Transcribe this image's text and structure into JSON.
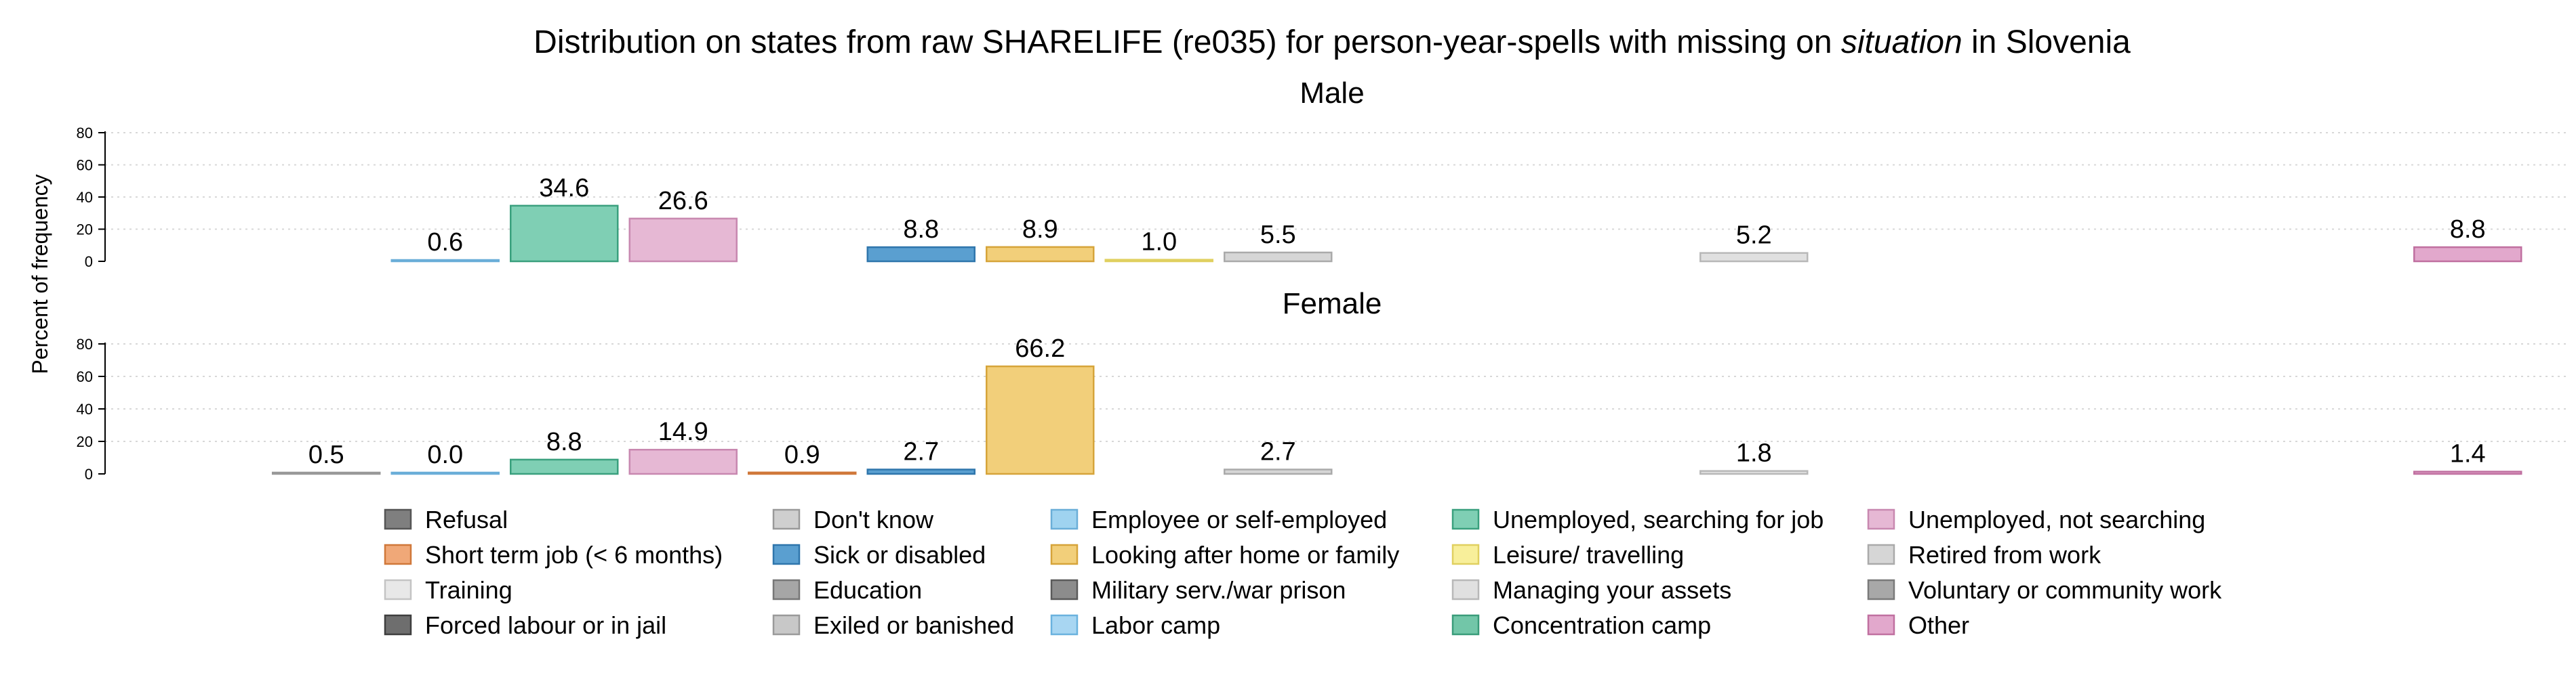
{
  "chart_data": {
    "type": "bar",
    "title_pre": "Distribution on states from raw SHARELIFE (re035) for person-year-spells with missing on ",
    "title_italic": "situation",
    "title_post": " in Slovenia",
    "ylabel": "Percent of frequency",
    "ylim": [
      0,
      80
    ],
    "yticks": [
      0,
      20,
      40,
      60,
      80
    ],
    "grid": true,
    "legend_position": "bottom",
    "categories": [
      "Refusal",
      "Don't know",
      "Employee or self-employed",
      "Unemployed, searching for job",
      "Unemployed, not searching",
      "Short term job (< 6 months)",
      "Sick or disabled",
      "Looking after home or family",
      "Leisure/ travelling",
      "Retired from work",
      "Training",
      "Education",
      "Military serv./war prison",
      "Managing your assets",
      "Voluntary or community work",
      "Forced labour or in jail",
      "Exiled or banished",
      "Labor camp",
      "Concentration camp",
      "Other"
    ],
    "colors": {
      "Refusal": "#7f7f7f",
      "Don't know": "#cfcfcf",
      "Employee or self-employed": "#9fd3f0",
      "Unemployed, searching for job": "#7fcfb4",
      "Unemployed, not searching": "#e6b8d4",
      "Short term job (< 6 months)": "#f0a878",
      "Sick or disabled": "#5a9fd0",
      "Looking after home or family": "#f2cf7a",
      "Leisure/ travelling": "#f8ef9a",
      "Retired from work": "#d6d6d6",
      "Training": "#e8e8e8",
      "Education": "#a6a6a6",
      "Military serv./war prison": "#8c8c8c",
      "Managing your assets": "#e0e0e0",
      "Voluntary or community work": "#a8a8a8",
      "Forced labour or in jail": "#6e6e6e",
      "Exiled or banished": "#c8c8c8",
      "Labor camp": "#a8d6f2",
      "Concentration camp": "#72c6a8",
      "Other": "#e2a8cc"
    },
    "border_colors": {
      "Refusal": "#555555",
      "Don't know": "#999999",
      "Employee or self-employed": "#6aaed8",
      "Unemployed, searching for job": "#3aa07e",
      "Unemployed, not searching": "#c888b0",
      "Short term job (< 6 months)": "#d0783a",
      "Sick or disabled": "#2f76ac",
      "Looking after home or family": "#d6a43a",
      "Leisure/ travelling": "#e0d060",
      "Retired from work": "#aaaaaa",
      "Training": "#c4c4c4",
      "Education": "#777777",
      "Military serv./war prison": "#5a5a5a",
      "Managing your assets": "#b8b8b8",
      "Voluntary or community work": "#7a7a7a",
      "Forced labour or in jail": "#3e3e3e",
      "Exiled or banished": "#9a9a9a",
      "Labor camp": "#6ab2de",
      "Concentration camp": "#3a9c7a",
      "Other": "#c070a0"
    },
    "panels": [
      {
        "title": "Male",
        "bars": [
          {
            "category": "Employee or self-employed",
            "value": 0.6,
            "label": "0.6"
          },
          {
            "category": "Unemployed, searching for job",
            "value": 34.6,
            "label": "34.6"
          },
          {
            "category": "Unemployed, not searching",
            "value": 26.6,
            "label": "26.6"
          },
          {
            "category": "Sick or disabled",
            "value": 8.8,
            "label": "8.8"
          },
          {
            "category": "Looking after home or family",
            "value": 8.9,
            "label": "8.9"
          },
          {
            "category": "Leisure/ travelling",
            "value": 1.0,
            "label": "1.0"
          },
          {
            "category": "Retired from work",
            "value": 5.5,
            "label": "5.5"
          },
          {
            "category": "Managing your assets",
            "value": 5.2,
            "label": "5.2"
          },
          {
            "category": "Other",
            "value": 8.8,
            "label": "8.8"
          }
        ]
      },
      {
        "title": "Female",
        "bars": [
          {
            "category": "Don't know",
            "value": 0.5,
            "label": "0.5"
          },
          {
            "category": "Employee or self-employed",
            "value": 0.0,
            "label": "0.0"
          },
          {
            "category": "Unemployed, searching for job",
            "value": 8.8,
            "label": "8.8"
          },
          {
            "category": "Unemployed, not searching",
            "value": 14.9,
            "label": "14.9"
          },
          {
            "category": "Short term job (< 6 months)",
            "value": 0.9,
            "label": "0.9"
          },
          {
            "category": "Sick or disabled",
            "value": 2.7,
            "label": "2.7"
          },
          {
            "category": "Looking after home or family",
            "value": 66.2,
            "label": "66.2"
          },
          {
            "category": "Retired from work",
            "value": 2.7,
            "label": "2.7"
          },
          {
            "category": "Managing your assets",
            "value": 1.8,
            "label": "1.8"
          },
          {
            "category": "Other",
            "value": 1.4,
            "label": "1.4"
          }
        ]
      }
    ],
    "legend_columns": [
      [
        "Refusal",
        "Short term job (< 6 months)",
        "Training",
        "Forced labour or in jail"
      ],
      [
        "Don't know",
        "Sick or disabled",
        "Education",
        "Exiled or banished"
      ],
      [
        "Employee or self-employed",
        "Looking after home or family",
        "Military serv./war prison",
        "Labor camp"
      ],
      [
        "Unemployed, searching for job",
        "Leisure/ travelling",
        "Managing your assets",
        "Concentration camp"
      ],
      [
        "Unemployed, not searching",
        "Retired from work",
        "Voluntary or community work",
        "Other"
      ]
    ]
  }
}
